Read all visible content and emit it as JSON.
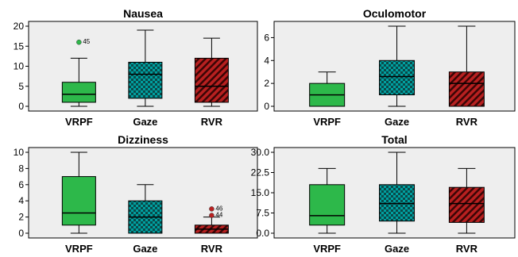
{
  "chart_data": [
    {
      "type": "box",
      "title": "Nausea",
      "categories": [
        "VRPF",
        "Gaze",
        "RVR"
      ],
      "ylim": [
        0,
        20
      ],
      "yticks": [
        0,
        5,
        10,
        15,
        20
      ],
      "ytick_labels": [
        "0",
        "5",
        "10",
        "15",
        "20"
      ],
      "boxes": [
        {
          "whisker_low": 0,
          "q1": 1,
          "median": 3,
          "q3": 6,
          "whisker_high": 12,
          "outliers": [
            {
              "value": 16,
              "label": "45"
            }
          ]
        },
        {
          "whisker_low": 0,
          "q1": 2,
          "median": 8,
          "q3": 11,
          "whisker_high": 19,
          "outliers": []
        },
        {
          "whisker_low": 0,
          "q1": 1,
          "median": 5,
          "q3": 12,
          "whisker_high": 17,
          "outliers": []
        }
      ]
    },
    {
      "type": "box",
      "title": "Oculomotor",
      "categories": [
        "VRPF",
        "Gaze",
        "RVR"
      ],
      "ylim": [
        0,
        7
      ],
      "yticks": [
        0,
        2,
        4,
        6
      ],
      "ytick_labels": [
        "0",
        "2",
        "4",
        "6"
      ],
      "boxes": [
        {
          "whisker_low": 0,
          "q1": 0,
          "median": 1,
          "q3": 2,
          "whisker_high": 3,
          "outliers": []
        },
        {
          "whisker_low": 0,
          "q1": 1,
          "median": 2.6,
          "q3": 4,
          "whisker_high": 7,
          "outliers": []
        },
        {
          "whisker_low": 0,
          "q1": 0,
          "median": 2,
          "q3": 3,
          "whisker_high": 7,
          "outliers": []
        }
      ]
    },
    {
      "type": "box",
      "title": "Dizziness",
      "categories": [
        "VRPF",
        "Gaze",
        "RVR"
      ],
      "ylim": [
        0,
        10
      ],
      "yticks": [
        0,
        2,
        4,
        6,
        8,
        10
      ],
      "ytick_labels": [
        "0",
        "2",
        "4",
        "6",
        "8",
        "10"
      ],
      "boxes": [
        {
          "whisker_low": 0,
          "q1": 1,
          "median": 2.5,
          "q3": 7,
          "whisker_high": 10,
          "outliers": []
        },
        {
          "whisker_low": 0,
          "q1": 0,
          "median": 2,
          "q3": 4,
          "whisker_high": 6,
          "outliers": []
        },
        {
          "whisker_low": 0,
          "q1": 0,
          "median": 0.5,
          "q3": 1,
          "whisker_high": 2,
          "outliers": [
            {
              "value": 3,
              "label": "46"
            },
            {
              "value": 2.2,
              "label": "44"
            }
          ]
        }
      ]
    },
    {
      "type": "box",
      "title": "Total",
      "categories": [
        "VRPF",
        "Gaze",
        "RVR"
      ],
      "ylim": [
        0,
        30
      ],
      "yticks": [
        0,
        7.5,
        15,
        22.5,
        30
      ],
      "ytick_labels": [
        "0.0",
        "7.5",
        "15.0",
        "22.5",
        "30.0"
      ],
      "boxes": [
        {
          "whisker_low": 0,
          "q1": 3,
          "median": 6.5,
          "q3": 18,
          "whisker_high": 24,
          "outliers": []
        },
        {
          "whisker_low": 0,
          "q1": 4.5,
          "median": 11,
          "q3": 18,
          "whisker_high": 30,
          "outliers": []
        },
        {
          "whisker_low": 0,
          "q1": 4,
          "median": 11,
          "q3": 17,
          "whisker_high": 24,
          "outliers": []
        }
      ]
    }
  ],
  "colors": {
    "panel_background": "#eeeeee",
    "VRPF": "#2db84a",
    "Gaze": "#00a0a0",
    "RVR": "#b82020",
    "Gaze_pattern": "#0a4a4a",
    "RVR_pattern": "#3a0606",
    "outlier_VRPF": "#2db84a",
    "outlier_RVR": "#b82020"
  },
  "fills": [
    "solid",
    "checker",
    "diagonal-hatch"
  ]
}
